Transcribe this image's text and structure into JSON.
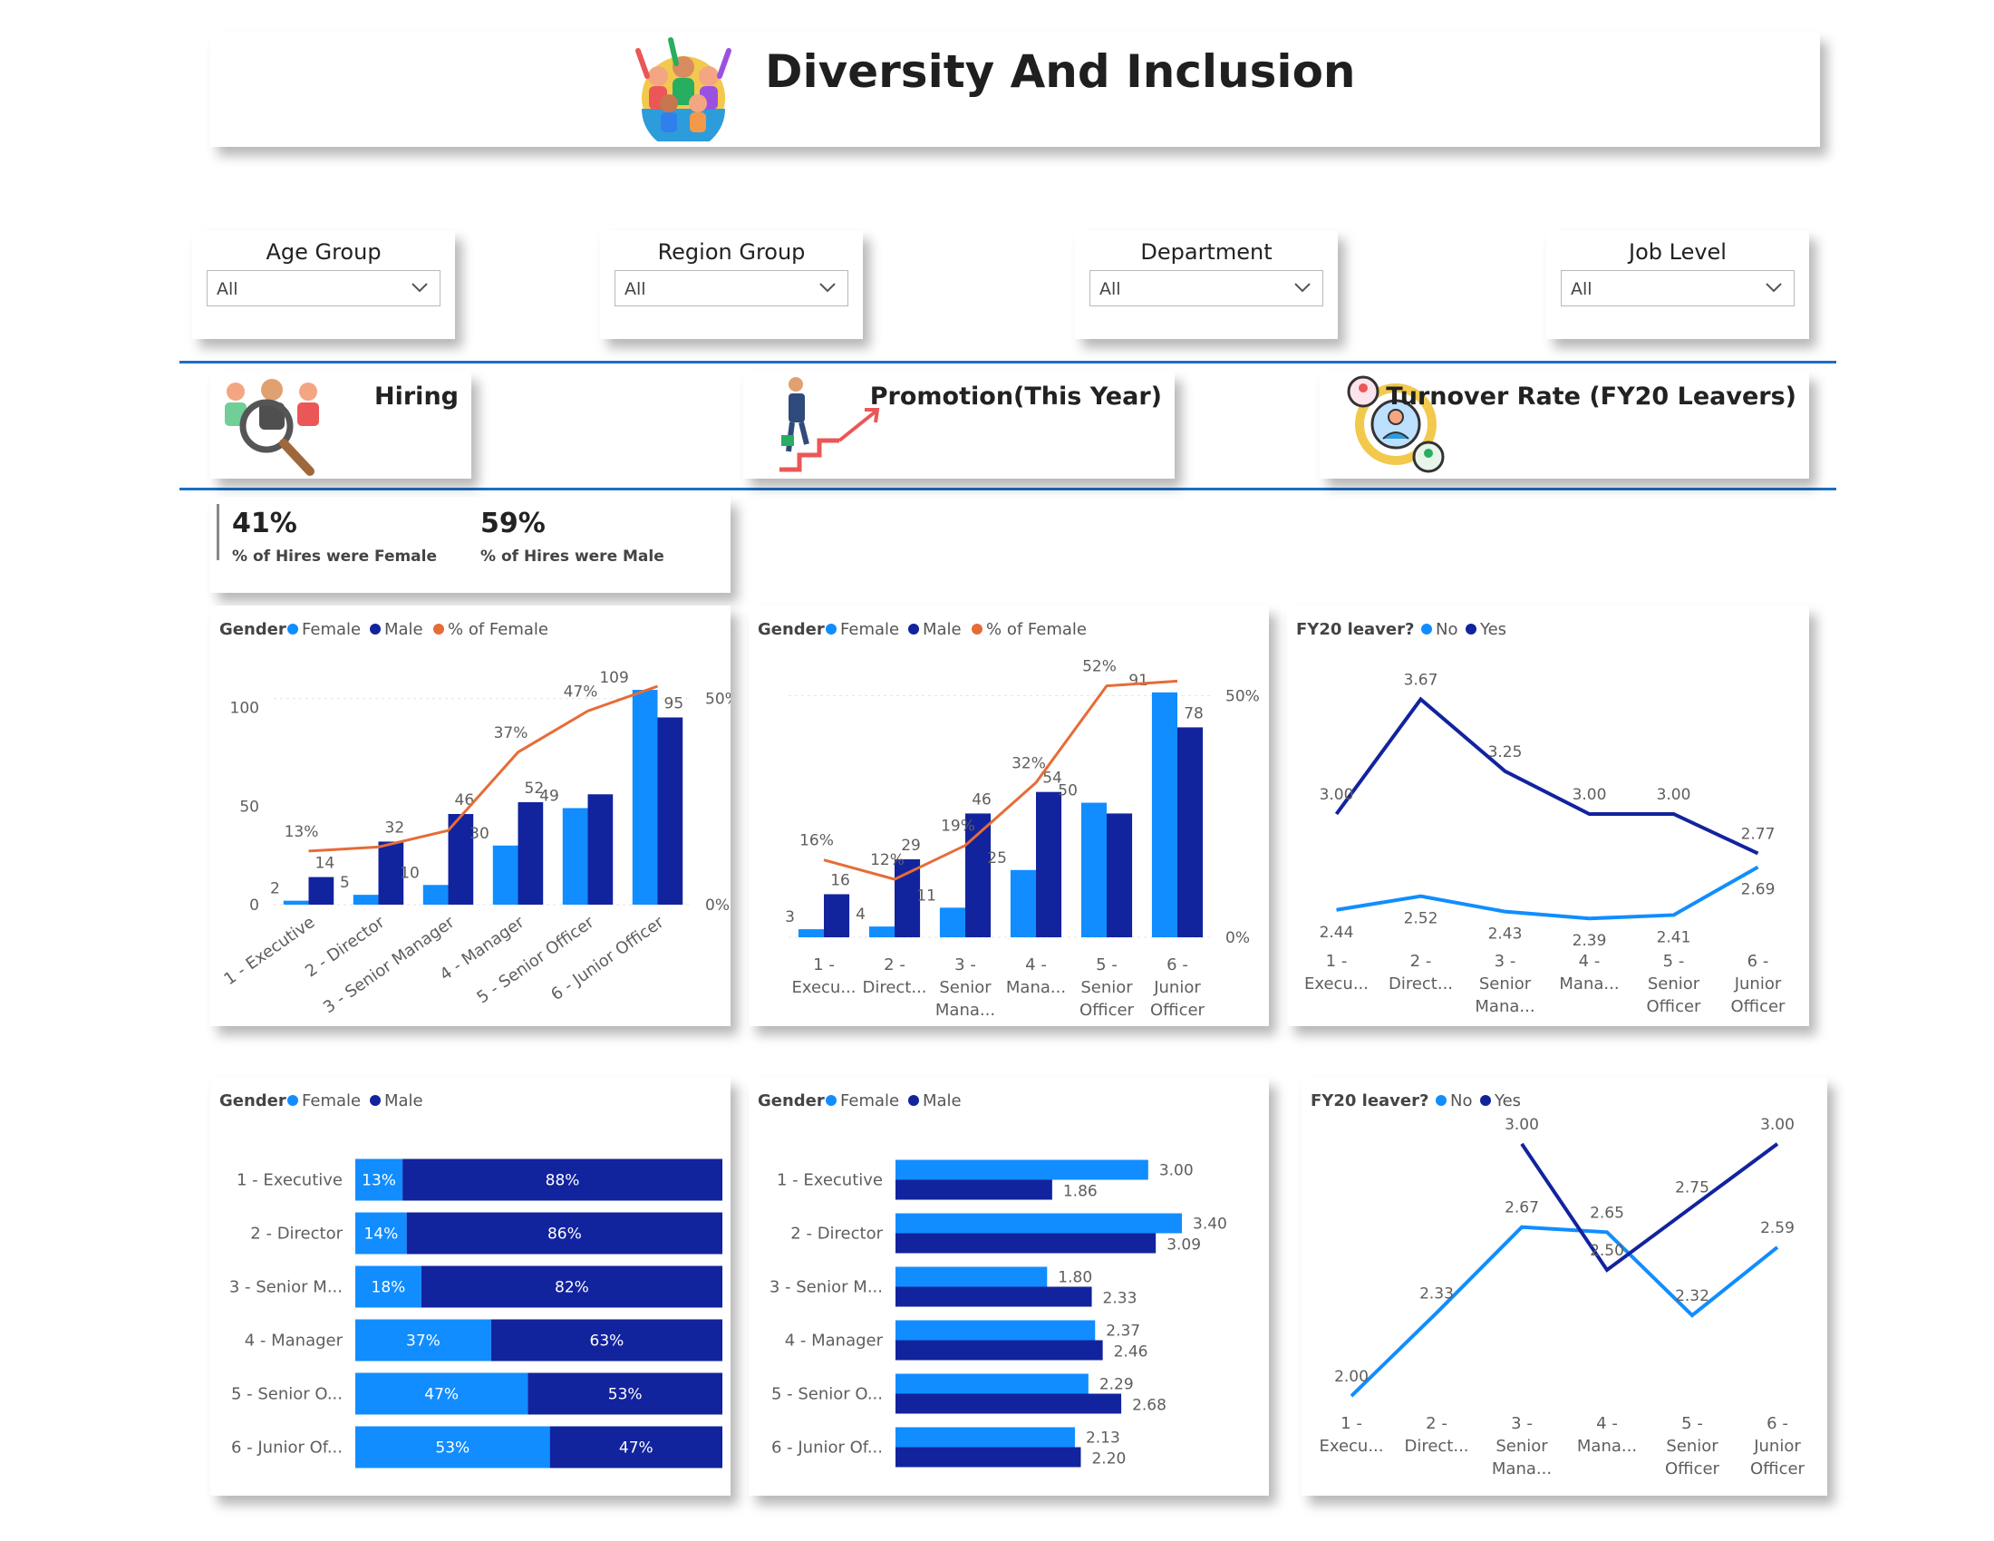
{
  "header": {
    "title": "Diversity And Inclusion",
    "icon": "crowd-icon"
  },
  "slicers": [
    {
      "title": "Age Group",
      "value": "All"
    },
    {
      "title": "Region Group",
      "value": "All"
    },
    {
      "title": "Department",
      "value": "All"
    },
    {
      "title": "Job Level",
      "value": "All"
    }
  ],
  "sections": {
    "hiring": {
      "title": "Hiring",
      "icon": "recruitment-icon"
    },
    "promotion": {
      "title": "Promotion(This Year)",
      "icon": "career-stairs-icon"
    },
    "turnover": {
      "title": "Turnover Rate (FY20 Leavers)",
      "icon": "employee-turnover-icon"
    }
  },
  "kpis": [
    {
      "value": "41%",
      "label": "% of Hires were Female"
    },
    {
      "value": "59%",
      "label": "% of Hires were Male"
    }
  ],
  "colors": {
    "female": "#118DFF",
    "male": "#12239E",
    "pct_line": "#E66C37",
    "divider": "#1b6fc4"
  },
  "chart_data": [
    {
      "id": "hiring-combo",
      "type": "bar",
      "legend_title": "Gender",
      "legend": [
        "Female",
        "Male",
        "% of Female"
      ],
      "categories": [
        "1 - Executive",
        "2 - Director",
        "3 - Senior Manager",
        "4 - Manager",
        "5 - Senior Officer",
        "6 - Junior Officer"
      ],
      "series": [
        {
          "name": "Female",
          "values": [
            2,
            5,
            10,
            30,
            49,
            109
          ],
          "labels": [
            "2",
            "5",
            "10",
            "30",
            "49",
            "109"
          ]
        },
        {
          "name": "Male",
          "values": [
            14,
            32,
            46,
            52,
            56,
            95
          ],
          "labels": [
            "14",
            "32",
            "46",
            "52",
            "",
            "95"
          ]
        },
        {
          "name": "% of Female",
          "values": [
            13,
            14,
            18,
            37,
            47,
            53
          ],
          "labels": [
            "13%",
            "",
            "",
            "37%",
            "47%",
            ""
          ]
        }
      ],
      "y_ticks": [
        "0",
        "50",
        "100"
      ],
      "y2_ticks": [
        "0%",
        "50%"
      ],
      "ylim": [
        0,
        115
      ],
      "y2lim": [
        0,
        55
      ]
    },
    {
      "id": "promotion-combo",
      "type": "bar",
      "legend_title": "Gender",
      "legend": [
        "Female",
        "Male",
        "% of Female"
      ],
      "categories": [
        "1 - Executive",
        "2 - Director",
        "3 - Senior Manager",
        "4 - Manager",
        "5 - Senior Officer",
        "6 - Junior Officer"
      ],
      "category_labels": [
        [
          "1 -",
          "Execu..."
        ],
        [
          "2 -",
          "Direct..."
        ],
        [
          "3 -",
          "Senior",
          "Mana..."
        ],
        [
          "4 -",
          "Mana..."
        ],
        [
          "5 -",
          "Senior",
          "Officer"
        ],
        [
          "6 -",
          "Junior",
          "Officer"
        ]
      ],
      "series": [
        {
          "name": "Female",
          "values": [
            3,
            4,
            11,
            25,
            50,
            91
          ],
          "labels": [
            "3",
            "4",
            "11",
            "25",
            "50",
            "91"
          ]
        },
        {
          "name": "Male",
          "values": [
            16,
            29,
            46,
            54,
            46,
            78
          ],
          "labels": [
            "16",
            "29",
            "46",
            "54",
            "",
            "78"
          ]
        },
        {
          "name": "% of Female",
          "values": [
            16,
            12,
            19,
            32,
            52,
            53
          ],
          "labels": [
            "16%",
            "12%",
            "19%",
            "32%",
            "52%",
            ""
          ]
        }
      ],
      "y2_ticks": [
        "0%",
        "50%"
      ],
      "ylim": [
        0,
        97
      ],
      "y2lim": [
        0,
        54
      ]
    },
    {
      "id": "promotion-turnover-line",
      "type": "line",
      "legend_title": "FY20 leaver?",
      "legend": [
        "No",
        "Yes"
      ],
      "categories": [
        "1 - Executive",
        "2 - Director",
        "3 - Senior Manager",
        "4 - Manager",
        "5 - Senior Officer",
        "6 - Junior Officer"
      ],
      "category_labels": [
        [
          "1 -",
          "Execu..."
        ],
        [
          "2 -",
          "Direct..."
        ],
        [
          "3 -",
          "Senior",
          "Mana..."
        ],
        [
          "4 -",
          "Mana..."
        ],
        [
          "5 -",
          "Senior",
          "Officer"
        ],
        [
          "6 -",
          "Junior",
          "Officer"
        ]
      ],
      "series": [
        {
          "name": "No",
          "values": [
            2.44,
            2.52,
            2.43,
            2.39,
            2.41,
            2.69
          ],
          "labels": [
            "2.44",
            "2.52",
            "2.43",
            "2.39",
            "2.41",
            "2.69"
          ]
        },
        {
          "name": "Yes",
          "values": [
            3.0,
            3.67,
            3.25,
            3.0,
            3.0,
            2.77
          ],
          "labels": [
            "3.00",
            "3.67",
            "3.25",
            "3.00",
            "3.00",
            "2.77"
          ]
        }
      ],
      "ylim": [
        2.1,
        3.9
      ]
    },
    {
      "id": "gender-share-stacked",
      "type": "bar",
      "orientation": "horizontal-stacked-100",
      "legend_title": "Gender",
      "legend": [
        "Female",
        "Male"
      ],
      "categories": [
        "1 - Executive",
        "2 - Director",
        "3 - Senior M...",
        "4 - Manager",
        "5 - Senior O...",
        "6 - Junior Of..."
      ],
      "series": [
        {
          "name": "Female",
          "values": [
            13,
            14,
            18,
            37,
            47,
            53
          ],
          "labels": [
            "13%",
            "14%",
            "18%",
            "37%",
            "47%",
            "53%"
          ]
        },
        {
          "name": "Male",
          "values": [
            88,
            86,
            82,
            63,
            53,
            47
          ],
          "labels": [
            "88%",
            "86%",
            "82%",
            "63%",
            "53%",
            "47%"
          ]
        }
      ]
    },
    {
      "id": "gender-rating-clustered",
      "type": "bar",
      "orientation": "horizontal",
      "legend_title": "Gender",
      "legend": [
        "Female",
        "Male"
      ],
      "categories": [
        "1 - Executive",
        "2 - Director",
        "3 - Senior M...",
        "4 - Manager",
        "5 - Senior O...",
        "6 - Junior Of..."
      ],
      "series": [
        {
          "name": "Female",
          "values": [
            3.0,
            3.4,
            1.8,
            2.37,
            2.29,
            2.13
          ],
          "labels": [
            "3.00",
            "3.40",
            "1.80",
            "2.37",
            "2.29",
            "2.13"
          ]
        },
        {
          "name": "Male",
          "values": [
            1.86,
            3.09,
            2.33,
            2.46,
            2.68,
            2.2
          ],
          "labels": [
            "1.86",
            "3.09",
            "2.33",
            "2.46",
            "2.68",
            "2.20"
          ]
        }
      ],
      "xlim": [
        0,
        3.5
      ]
    },
    {
      "id": "leaver-rating-line",
      "type": "line",
      "legend_title": "FY20 leaver?",
      "legend": [
        "No",
        "Yes"
      ],
      "categories": [
        "1 - Executive",
        "2 - Director",
        "3 - Senior Manager",
        "4 - Manager",
        "5 - Senior Officer",
        "6 - Junior Officer"
      ],
      "category_labels": [
        [
          "1 -",
          "Execu..."
        ],
        [
          "2 -",
          "Direct..."
        ],
        [
          "3 -",
          "Senior",
          "Mana..."
        ],
        [
          "4 -",
          "Mana..."
        ],
        [
          "5 -",
          "Senior",
          "Officer"
        ],
        [
          "6 -",
          "Junior",
          "Officer"
        ]
      ],
      "series": [
        {
          "name": "No",
          "values": [
            2.0,
            2.33,
            2.67,
            2.65,
            2.32,
            2.59
          ],
          "labels": [
            "2.00",
            "2.33",
            "2.67",
            "2.65",
            "2.32",
            "2.59"
          ]
        },
        {
          "name": "Yes",
          "values": [
            null,
            null,
            3.0,
            2.5,
            2.75,
            3.0
          ],
          "labels": [
            "",
            "",
            "3.00",
            "2.50",
            "2.75",
            "3.00"
          ]
        }
      ],
      "ylim": [
        1.95,
        3.05
      ]
    }
  ]
}
